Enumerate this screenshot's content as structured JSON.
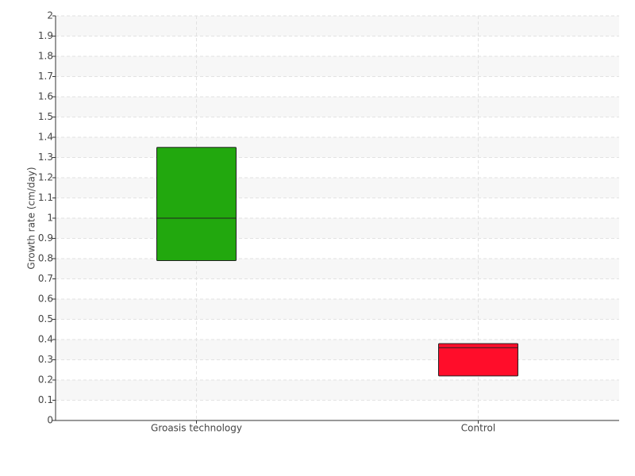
{
  "chart_data": {
    "type": "box",
    "y_label": "Growth rate (cm/day)",
    "categories": [
      "Groasis technology",
      "Control"
    ],
    "series": [
      {
        "q1": 0.79,
        "median": 1.0,
        "q3": 1.35,
        "color": "#22a80e"
      },
      {
        "q1": 0.22,
        "median": 0.36,
        "q3": 0.38,
        "color": "#ff0d2a"
      }
    ],
    "ylim": [
      0,
      2
    ],
    "yticks": [
      0,
      0.1,
      0.2,
      0.3,
      0.4,
      0.5,
      0.6,
      0.7,
      0.8,
      0.9,
      1,
      1.1,
      1.2,
      1.3,
      1.4,
      1.5,
      1.6,
      1.7,
      1.8,
      1.9,
      2
    ],
    "grid": true
  }
}
